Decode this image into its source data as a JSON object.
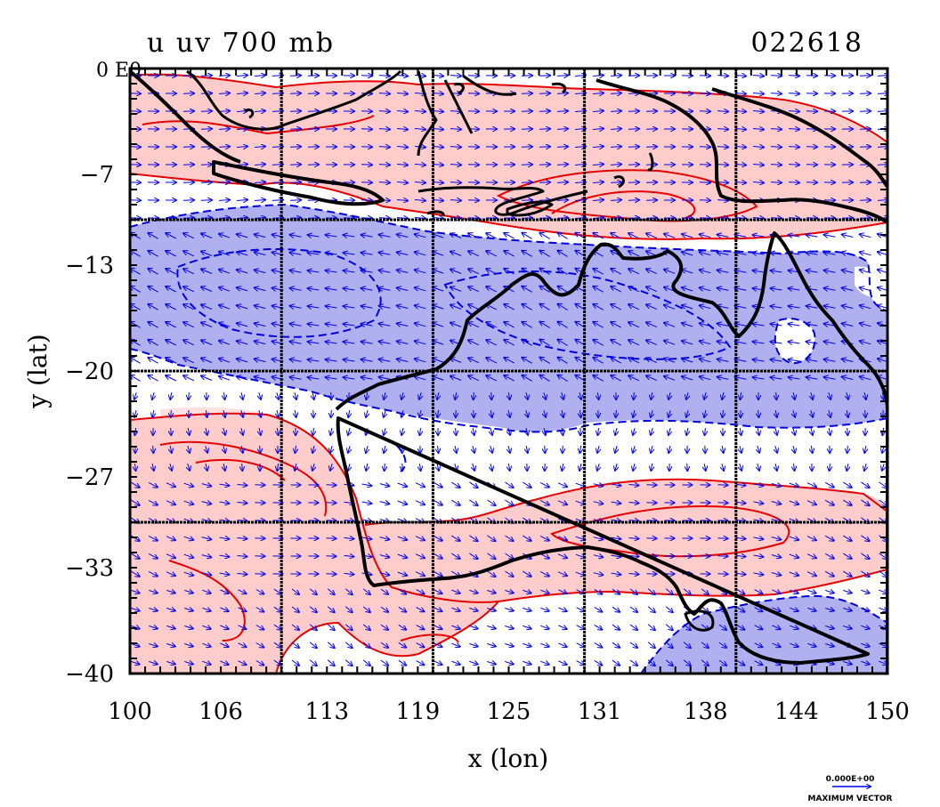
{
  "title": {
    "left": "u  uv  700  mb",
    "right": "022618"
  },
  "corner_label": "0 E0",
  "axes": {
    "xlabel": "x (lon)",
    "ylabel": "y (lat)",
    "xlim": [
      100,
      150
    ],
    "ylim": [
      -40,
      0
    ],
    "xticks": [
      100,
      106,
      113,
      119,
      125,
      131,
      138,
      144,
      150
    ],
    "xtick_labels": [
      "100",
      "106",
      "113",
      "119",
      "125",
      "131",
      "138",
      "144",
      "150"
    ],
    "yticks": [
      -40,
      -33,
      -27,
      -20,
      -13,
      -7,
      0
    ],
    "ytick_labels": [
      "−40",
      "−33",
      "−27",
      "−20",
      "−13",
      "−7",
      ""
    ],
    "grid_lon": [
      110,
      120,
      130,
      140
    ],
    "grid_lat": [
      -10,
      -20,
      -30
    ]
  },
  "vector_key": {
    "value_label": "0.000E+00",
    "caption": "MAXIMUM VECTOR"
  },
  "colors": {
    "positive_fill": "#ffcccc",
    "positive_contour": "#e60000",
    "negative_fill": "#b0b0f0",
    "negative_contour": "#0000dd",
    "vectors": "#0000ee",
    "coast": "#000000",
    "grid": "#000000"
  },
  "chart_data": {
    "type": "heatmap",
    "field": "u-wind 700 mb with wind vectors",
    "x_units": "degrees longitude",
    "y_units": "degrees latitude",
    "regions": [
      {
        "sign": "positive",
        "lon_range": [
          100,
          150
        ],
        "lat_range": [
          -10,
          0
        ]
      },
      {
        "sign": "negative",
        "lon_range": [
          100,
          150
        ],
        "lat_range": [
          -21,
          -10
        ]
      },
      {
        "sign": "negative",
        "lon_range": [
          133,
          150
        ],
        "lat_range": [
          -40,
          -34
        ]
      },
      {
        "sign": "positive",
        "lon_range": [
          100,
          114
        ],
        "lat_range": [
          -40,
          -22
        ]
      },
      {
        "sign": "positive",
        "lon_range": [
          114,
          150
        ],
        "lat_range": [
          -36,
          -26
        ]
      }
    ]
  }
}
